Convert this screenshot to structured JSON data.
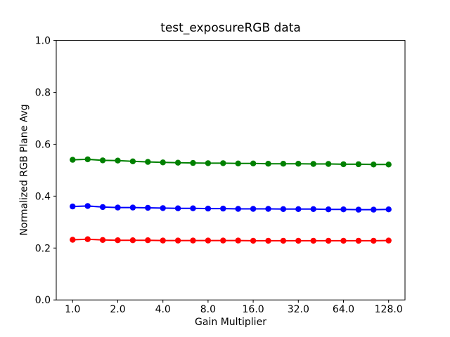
{
  "chart_data": {
    "type": "line",
    "title": "test_exposureRGB data",
    "xlabel": "Gain Multiplier",
    "ylabel": "Normalized RGB Plane Avg",
    "x_scale": "log2",
    "grid": false,
    "legend": null,
    "ylim": [
      0.0,
      1.0
    ],
    "xlim_log2": [
      -0.363,
      7.363
    ],
    "x": [
      1.0,
      1.26,
      1.587,
      2.0,
      2.52,
      3.175,
      4.0,
      5.04,
      6.35,
      8.0,
      10.079,
      12.699,
      16.0,
      20.159,
      25.398,
      32.0,
      40.317,
      50.797,
      64.0,
      80.635,
      101.594,
      128.0
    ],
    "series": [
      {
        "name": "green-plane",
        "color": "#008000",
        "values": [
          0.54,
          0.542,
          0.538,
          0.537,
          0.534,
          0.532,
          0.53,
          0.529,
          0.528,
          0.527,
          0.527,
          0.526,
          0.526,
          0.525,
          0.525,
          0.525,
          0.524,
          0.524,
          0.523,
          0.523,
          0.522,
          0.522
        ]
      },
      {
        "name": "blue-plane",
        "color": "#0000ff",
        "values": [
          0.36,
          0.362,
          0.358,
          0.356,
          0.356,
          0.355,
          0.354,
          0.353,
          0.353,
          0.352,
          0.352,
          0.351,
          0.351,
          0.351,
          0.35,
          0.35,
          0.35,
          0.349,
          0.349,
          0.348,
          0.348,
          0.349
        ]
      },
      {
        "name": "red-plane",
        "color": "#ff0000",
        "values": [
          0.232,
          0.234,
          0.231,
          0.23,
          0.23,
          0.23,
          0.229,
          0.229,
          0.229,
          0.229,
          0.229,
          0.229,
          0.228,
          0.228,
          0.228,
          0.228,
          0.228,
          0.228,
          0.228,
          0.228,
          0.228,
          0.229
        ]
      }
    ],
    "xticks": {
      "values": [
        1,
        2,
        4,
        8,
        16,
        32,
        64,
        128
      ],
      "labels": [
        "1.0",
        "2.0",
        "4.0",
        "8.0",
        "16.0",
        "32.0",
        "64.0",
        "128.0"
      ]
    },
    "yticks": {
      "values": [
        0.0,
        0.2,
        0.4,
        0.6,
        0.8,
        1.0
      ],
      "labels": [
        "0.0",
        "0.2",
        "0.4",
        "0.6",
        "0.8",
        "1.0"
      ]
    },
    "axis_color": "#000000",
    "background_color": "#ffffff"
  }
}
